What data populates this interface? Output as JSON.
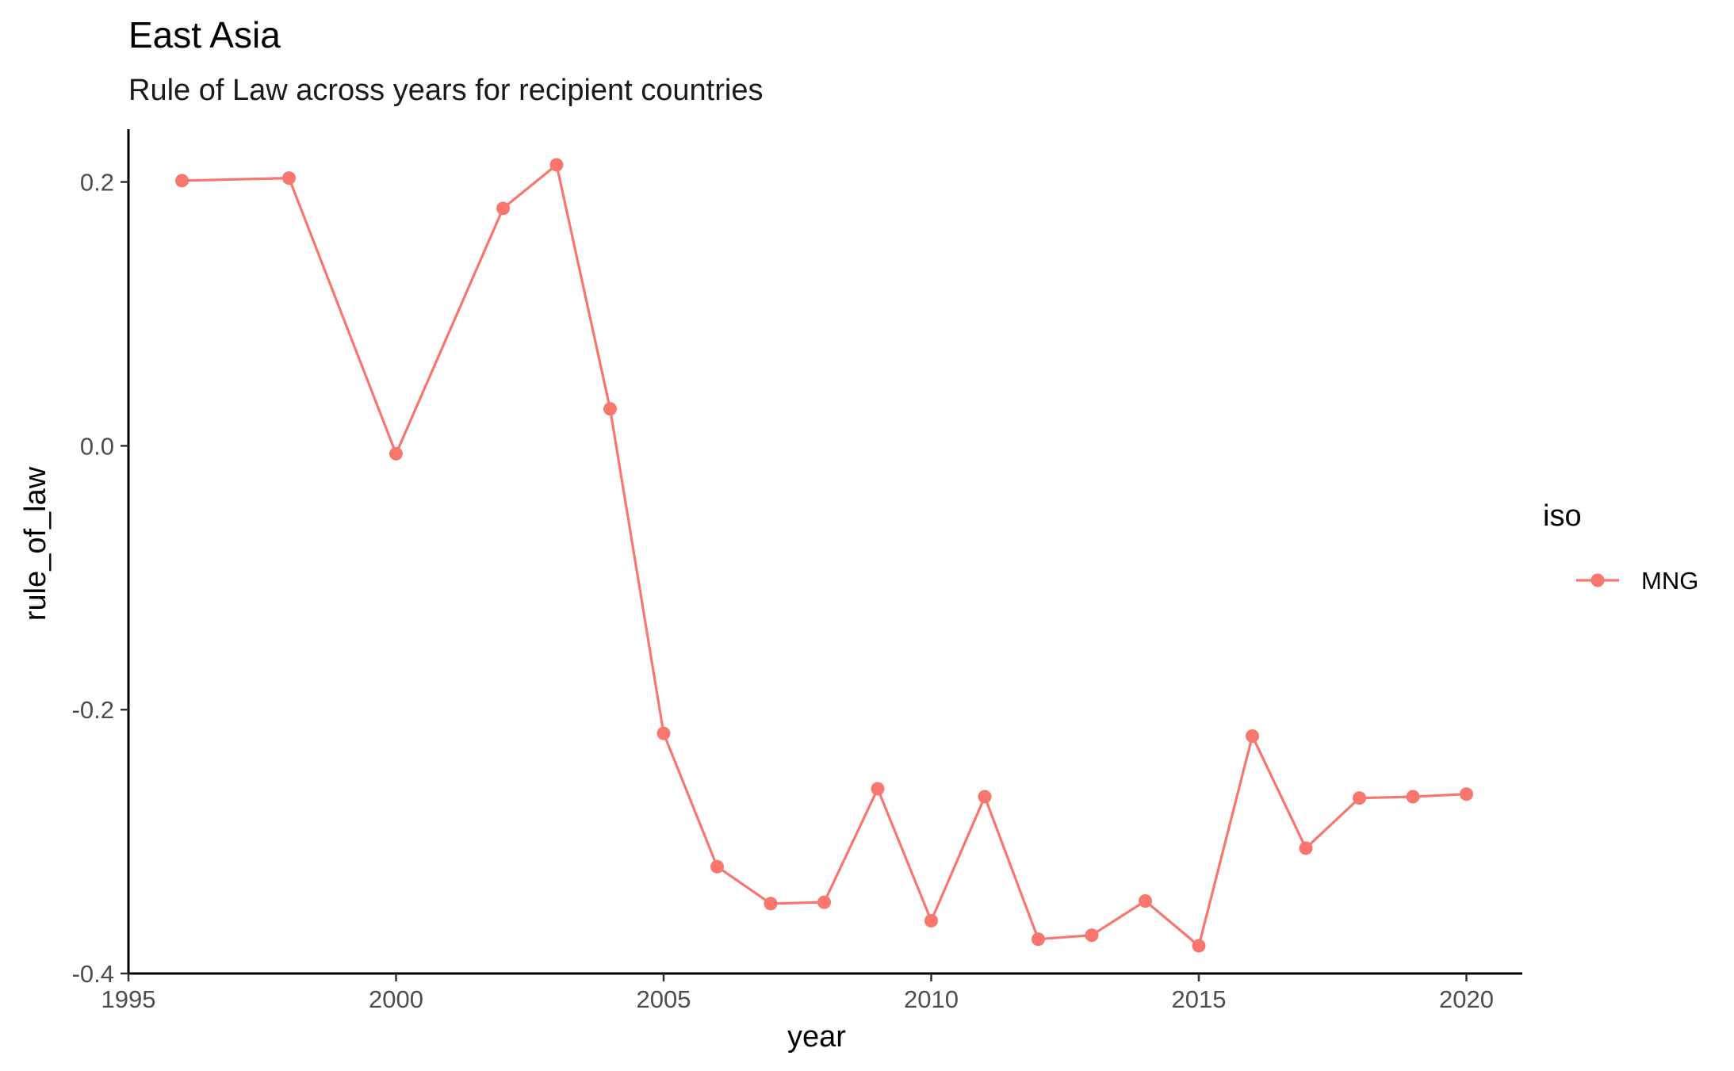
{
  "chart_data": {
    "type": "line",
    "title": "East Asia",
    "subtitle": "Rule of Law across years for recipient countries",
    "xlabel": "year",
    "ylabel": "rule_of_law",
    "xlim": [
      1995,
      2021
    ],
    "ylim": [
      -0.4,
      0.24
    ],
    "x_ticks": [
      1995,
      2000,
      2005,
      2010,
      2015,
      2020
    ],
    "y_ticks": [
      -0.4,
      -0.2,
      0.0,
      0.2
    ],
    "x_tick_labels": [
      "1995",
      "2000",
      "2005",
      "2010",
      "2015",
      "2020"
    ],
    "y_tick_labels": [
      "-0.4",
      "-0.2",
      "0.0",
      "0.2"
    ],
    "grid": false,
    "legend": {
      "title": "iso",
      "position": "right"
    },
    "series": [
      {
        "name": "MNG",
        "color": "#F8766D",
        "x": [
          1996,
          1998,
          2000,
          2002,
          2003,
          2004,
          2005,
          2006,
          2007,
          2008,
          2009,
          2010,
          2011,
          2012,
          2013,
          2014,
          2015,
          2016,
          2017,
          2018,
          2019,
          2020
        ],
        "y": [
          0.201,
          0.203,
          -0.006,
          0.18,
          0.213,
          0.028,
          -0.218,
          -0.319,
          -0.347,
          -0.346,
          -0.26,
          -0.36,
          -0.266,
          -0.374,
          -0.371,
          -0.345,
          -0.379,
          -0.22,
          -0.305,
          -0.267,
          -0.266,
          -0.264
        ]
      }
    ]
  }
}
